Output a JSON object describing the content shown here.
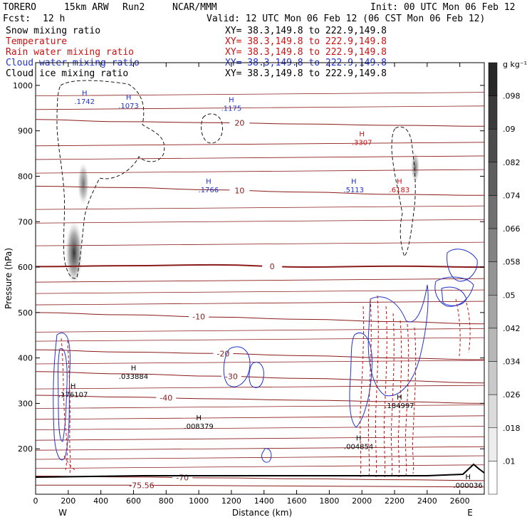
{
  "header": {
    "model": "TORERO",
    "resolution": "15km ARW",
    "run": "Run2",
    "org": "NCAR/MMM",
    "init": "Init: 00 UTC Mon 06 Feb 12",
    "fcst_label": "Fcst:",
    "fcst_value": "12 h",
    "valid": "Valid: 12 UTC Mon 06 Feb 12 (06 CST Mon 06 Feb 12)"
  },
  "legend": [
    {
      "name": "Snow mixing ratio",
      "coord": "XY=  38.3,149.8 to 222.9,149.8",
      "color": "#000000"
    },
    {
      "name": "Temperature",
      "coord": "XY=  38.3,149.8 to 222.9,149.8",
      "color": "#cc1111"
    },
    {
      "name": "Rain water mixing ratio",
      "coord": "XY=  38.3,149.8 to 222.9,149.8",
      "color": "#cc1111"
    },
    {
      "name": "Cloud water mixing ratio",
      "coord": "XY=  38.3,149.8 to 222.9,149.8",
      "color": "#2233cc"
    },
    {
      "name": "Cloud ice mixing ratio",
      "coord": "XY=  38.3,149.8 to 222.9,149.8",
      "color": "#000000"
    }
  ],
  "colorbar": {
    "unit": "g kg⁻¹",
    "labels": [
      ".098",
      ".09",
      ".082",
      ".074",
      ".066",
      ".058",
      ".05",
      ".042",
      ".034",
      ".026",
      ".018",
      ".01"
    ]
  },
  "chart_data": {
    "type": "contour",
    "xlabel": "Distance (km)",
    "ylabel": "Pressure (hPa)",
    "xlim": [
      0,
      2750
    ],
    "ylim": [
      1050,
      100
    ],
    "x_ticks": [
      0,
      200,
      400,
      600,
      800,
      1000,
      1200,
      1400,
      1600,
      1800,
      2000,
      2200,
      2400,
      2600
    ],
    "y_ticks": [
      200,
      300,
      400,
      500,
      600,
      700,
      800,
      900,
      1000
    ],
    "x_end_labels": {
      "left": "W",
      "right": "E"
    },
    "temperature_contours": [
      {
        "level": -75.56,
        "p": [
          120,
          120,
          119,
          118,
          117,
          116
        ],
        "label": "-75.56",
        "label_x": 650
      },
      {
        "level": -70,
        "p": [
          140,
          138,
          136,
          134,
          132,
          130
        ],
        "label": "-70",
        "label_x": 900
      },
      {
        "level": -40,
        "p": [
          318,
          314,
          310,
          307,
          304,
          300
        ],
        "label": "-40",
        "label_x": 800
      },
      {
        "level": -30,
        "p": [
          370,
          365,
          360,
          355,
          350,
          345
        ],
        "label": "-30",
        "label_x": 1200
      },
      {
        "level": -20,
        "p": [
          418,
          413,
          410,
          405,
          400,
          396
        ],
        "label": "-20",
        "label_x": 1150
      },
      {
        "level": -10,
        "p": [
          500,
          495,
          490,
          485,
          480,
          475
        ],
        "label": "-10",
        "label_x": 1000
      },
      {
        "level": 0,
        "p": [
          601,
          603,
          605,
          600,
          602,
          600
        ],
        "label": "0",
        "label_x": 1450
      },
      {
        "level": 10,
        "p": [
          778,
          775,
          770,
          765,
          760,
          758
        ],
        "label": "10",
        "label_x": 1250
      },
      {
        "level": 20,
        "p": [
          925,
          920,
          918,
          915,
          912,
          910
        ],
        "label": "20",
        "label_x": 1250
      }
    ],
    "snow_maxima": [
      {
        "label": ".176107",
        "x": 230,
        "p": 330
      },
      {
        "label": ".033884",
        "x": 600,
        "p": 370
      },
      {
        "label": ".008379",
        "x": 1000,
        "p": 260
      },
      {
        "label": ".004854",
        "x": 1980,
        "p": 215
      },
      {
        "label": ".184997",
        "x": 2230,
        "p": 305
      },
      {
        "label": ".000036",
        "x": 2650,
        "p": 130
      }
    ],
    "cloud_water_maxima": [
      {
        "label": ".1742",
        "x": 300,
        "p": 975
      },
      {
        "label": ".1073",
        "x": 570,
        "p": 965
      },
      {
        "label": ".1766",
        "x": 1060,
        "p": 780
      },
      {
        "label": ".1175",
        "x": 1200,
        "p": 960
      },
      {
        "label": ".5113",
        "x": 1950,
        "p": 780
      }
    ],
    "rain_maxima": [
      {
        "label": ".6183",
        "x": 2230,
        "p": 780
      },
      {
        "label": ".3307",
        "x": 2000,
        "p": 885
      }
    ]
  }
}
